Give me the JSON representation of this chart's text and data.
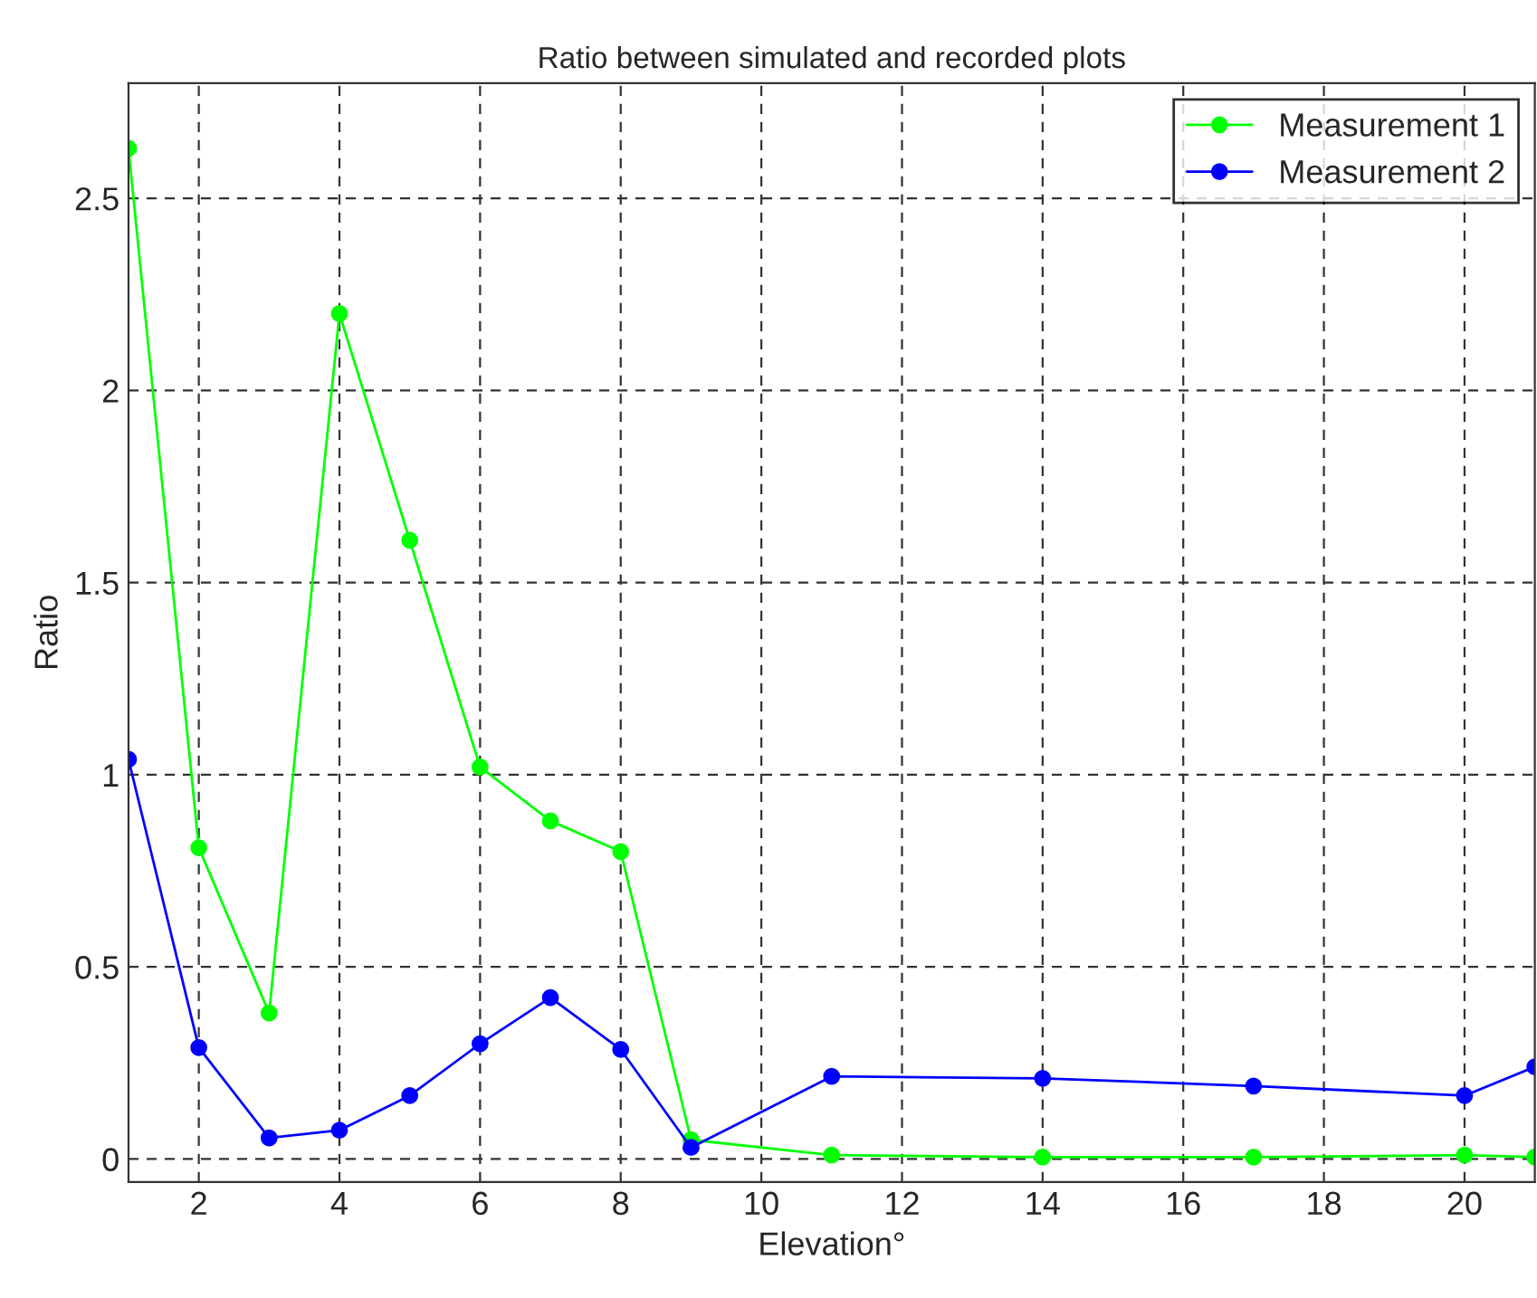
{
  "chart_data": {
    "type": "line",
    "title": "Ratio between simulated and recorded plots",
    "xlabel": "Elevation°",
    "ylabel": "Ratio",
    "x": [
      1,
      2,
      3,
      4,
      5,
      6,
      7,
      8,
      9,
      11,
      14,
      17,
      20,
      21
    ],
    "series": [
      {
        "name": "Measurement 1",
        "color": "#00ff00",
        "values": [
          2.63,
          0.81,
          0.38,
          2.2,
          1.61,
          1.02,
          0.88,
          0.8,
          0.05,
          0.01,
          0.005,
          0.005,
          0.01,
          0.005
        ]
      },
      {
        "name": "Measurement 2",
        "color": "#0000ff",
        "values": [
          1.04,
          0.29,
          0.055,
          0.075,
          0.165,
          0.3,
          0.42,
          0.285,
          0.03,
          0.215,
          0.21,
          0.19,
          0.165,
          0.24
        ]
      }
    ],
    "xlim": [
      1,
      21
    ],
    "xticks": [
      2,
      4,
      6,
      8,
      10,
      12,
      14,
      16,
      18,
      20
    ],
    "ylim": [
      -0.06,
      2.8
    ],
    "yticks": [
      0,
      0.5,
      1,
      1.5,
      2,
      2.5
    ],
    "grid": true,
    "legend": "top right",
    "marker": "circle",
    "line_style": "solid"
  }
}
